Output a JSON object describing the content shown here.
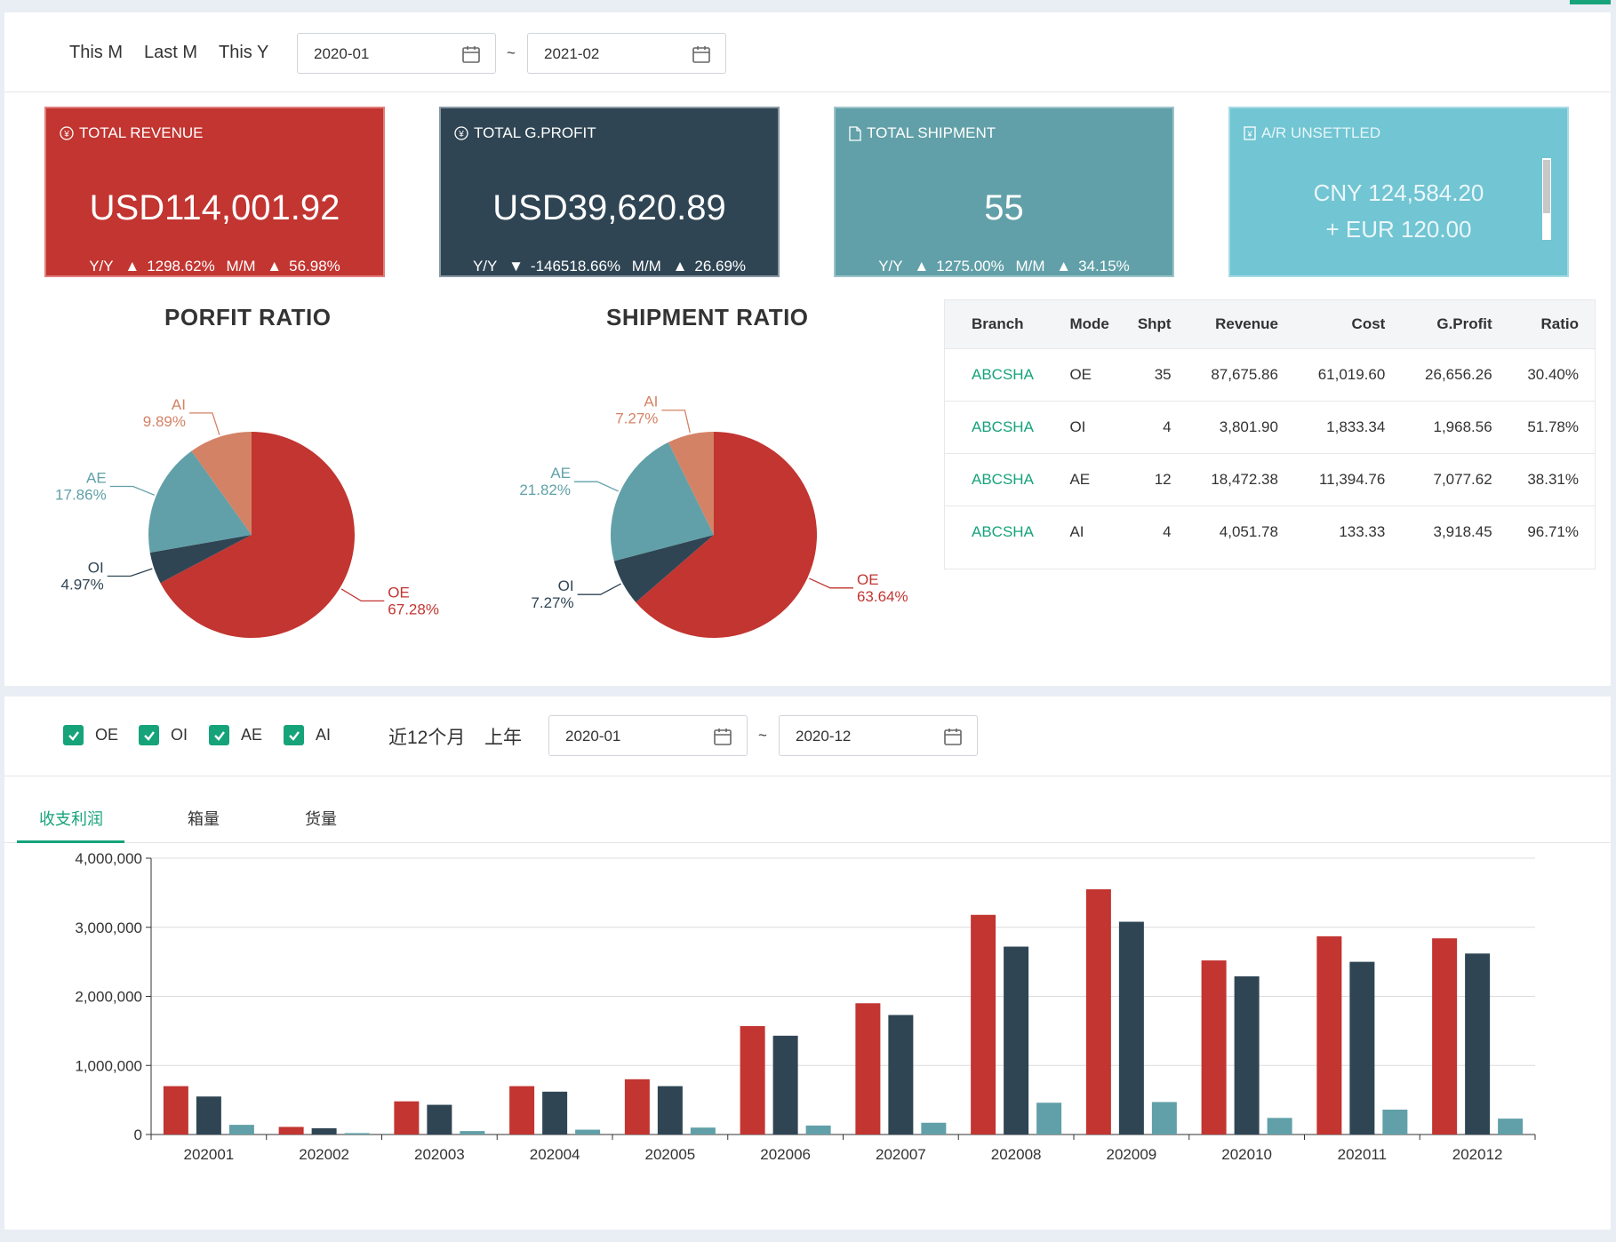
{
  "top_filter": {
    "quick": [
      "This M",
      "Last M",
      "This Y"
    ],
    "date_from": "2020-01",
    "date_to": "2021-02",
    "separator": "~"
  },
  "kpis": [
    {
      "icon": "yen-circle-icon",
      "title": "TOTAL REVENUE",
      "value": "USD114,001.92",
      "yy_label": "Y/Y",
      "yy_dir": "up",
      "yy": "1298.62%",
      "mm_label": "M/M",
      "mm_dir": "up",
      "mm": "56.98%",
      "color": "#c23531"
    },
    {
      "icon": "yen-circle-icon",
      "title": "TOTAL G.PROFIT",
      "value": "USD39,620.89",
      "yy_label": "Y/Y",
      "yy_dir": "down",
      "yy": "-146518.66%",
      "mm_label": "M/M",
      "mm_dir": "up",
      "mm": "26.69%",
      "color": "#2f4554"
    },
    {
      "icon": "document-icon",
      "title": "TOTAL SHIPMENT",
      "value": "55",
      "yy_label": "Y/Y",
      "yy_dir": "up",
      "yy": "1275.00%",
      "mm_label": "M/M",
      "mm_dir": "up",
      "mm": "34.15%",
      "color": "#61a0a8"
    },
    {
      "icon": "invoice-icon",
      "title": "A/R UNSETTLED",
      "lines": [
        "CNY 124,584.20",
        "+ EUR 120.00"
      ],
      "color": "#72c5d3"
    }
  ],
  "pie_titles": [
    "PORFIT RATIO",
    "SHIPMENT RATIO"
  ],
  "table": {
    "headers": [
      "Branch",
      "Mode",
      "Shpt",
      "Revenue",
      "Cost",
      "G.Profit",
      "Ratio"
    ],
    "rows": [
      [
        "ABCSHA",
        "OE",
        "35",
        "87,675.86",
        "61,019.60",
        "26,656.26",
        "30.40%"
      ],
      [
        "ABCSHA",
        "OI",
        "4",
        "3,801.90",
        "1,833.34",
        "1,968.56",
        "51.78%"
      ],
      [
        "ABCSHA",
        "AE",
        "12",
        "18,472.38",
        "11,394.76",
        "7,077.62",
        "38.31%"
      ],
      [
        "ABCSHA",
        "AI",
        "4",
        "4,051.78",
        "133.33",
        "3,918.45",
        "96.71%"
      ]
    ]
  },
  "bottom_filter": {
    "checkboxes": [
      "OE",
      "OI",
      "AE",
      "AI"
    ],
    "presets": [
      "近12个月",
      "上年"
    ],
    "date_from": "2020-01",
    "date_to": "2020-12",
    "separator": "~"
  },
  "tabs": [
    "收支利润",
    "箱量",
    "货量"
  ],
  "colors": {
    "oe": "#c23531",
    "oi": "#2f4554",
    "ae": "#61a0a8",
    "ai": "#d48265",
    "accent": "#16a37a"
  },
  "chart_data": [
    {
      "type": "pie",
      "title": "PORFIT RATIO",
      "labels": [
        "OE",
        "OI",
        "AE",
        "AI"
      ],
      "values": [
        67.28,
        4.97,
        17.86,
        9.89
      ],
      "value_labels": [
        "67.28%",
        "4.97%",
        "17.86%",
        "9.89%"
      ]
    },
    {
      "type": "pie",
      "title": "SHIPMENT RATIO",
      "labels": [
        "OE",
        "OI",
        "AE",
        "AI"
      ],
      "values": [
        63.64,
        7.27,
        21.82,
        7.27
      ],
      "value_labels": [
        "63.64%",
        "7.27%",
        "21.82%",
        "7.27%"
      ]
    },
    {
      "type": "bar",
      "categories": [
        "202001",
        "202002",
        "202003",
        "202004",
        "202005",
        "202006",
        "202007",
        "202008",
        "202009",
        "202010",
        "202011",
        "202012"
      ],
      "series": [
        {
          "values": [
            700000,
            110000,
            480000,
            700000,
            800000,
            1570000,
            1900000,
            3180000,
            3550000,
            2520000,
            2870000,
            2840000
          ]
        },
        {
          "values": [
            550000,
            90000,
            430000,
            620000,
            700000,
            1430000,
            1730000,
            2720000,
            3080000,
            2290000,
            2500000,
            2620000
          ]
        },
        {
          "values": [
            140000,
            20000,
            50000,
            70000,
            100000,
            130000,
            170000,
            460000,
            470000,
            240000,
            360000,
            230000
          ]
        }
      ],
      "ylim": [
        0,
        4000000
      ],
      "yticks": [
        "0",
        "1,000,000",
        "2,000,000",
        "3,000,000",
        "4,000,000"
      ]
    }
  ]
}
